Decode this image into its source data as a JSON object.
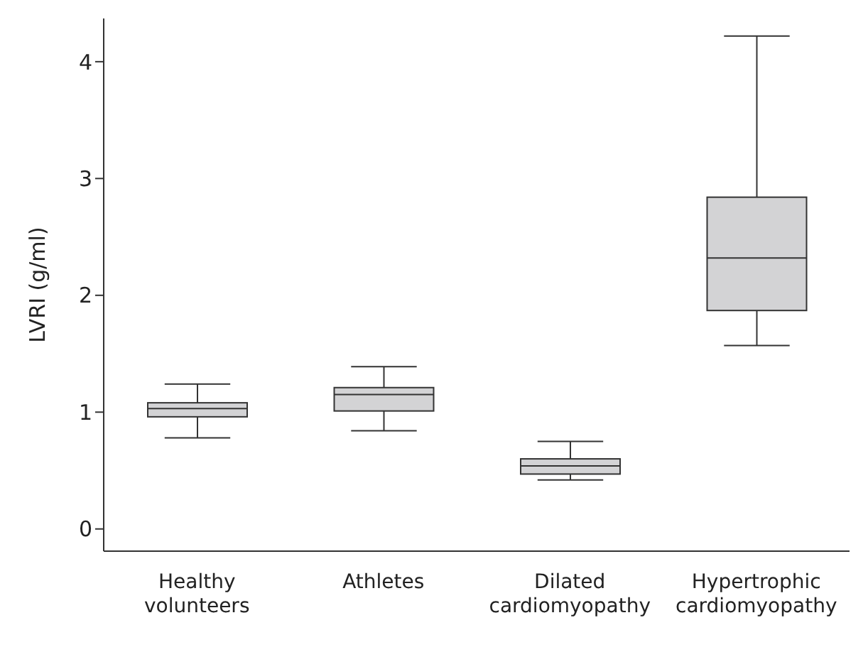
{
  "chart_data": {
    "type": "box",
    "ylabel": "LVRI (g/ml)",
    "categories": [
      "Healthy\nvolunteers",
      "Athletes",
      "Dilated\ncardiomyopathy",
      "Hypertrophic\ncardiomyopathy"
    ],
    "color": "#d3d3d5",
    "ylim": [
      -0.19,
      4.37
    ],
    "yticks": [
      0,
      1,
      2,
      3,
      4
    ],
    "grid": false,
    "boxes": [
      {
        "low": 0.78,
        "q1": 0.96,
        "median": 1.03,
        "q3": 1.08,
        "high": 1.24
      },
      {
        "low": 0.84,
        "q1": 1.01,
        "median": 1.15,
        "q3": 1.21,
        "high": 1.39
      },
      {
        "low": 0.42,
        "q1": 0.47,
        "median": 0.54,
        "q3": 0.6,
        "high": 0.75
      },
      {
        "low": 1.57,
        "q1": 1.87,
        "median": 2.32,
        "q3": 2.84,
        "high": 4.22
      }
    ]
  }
}
